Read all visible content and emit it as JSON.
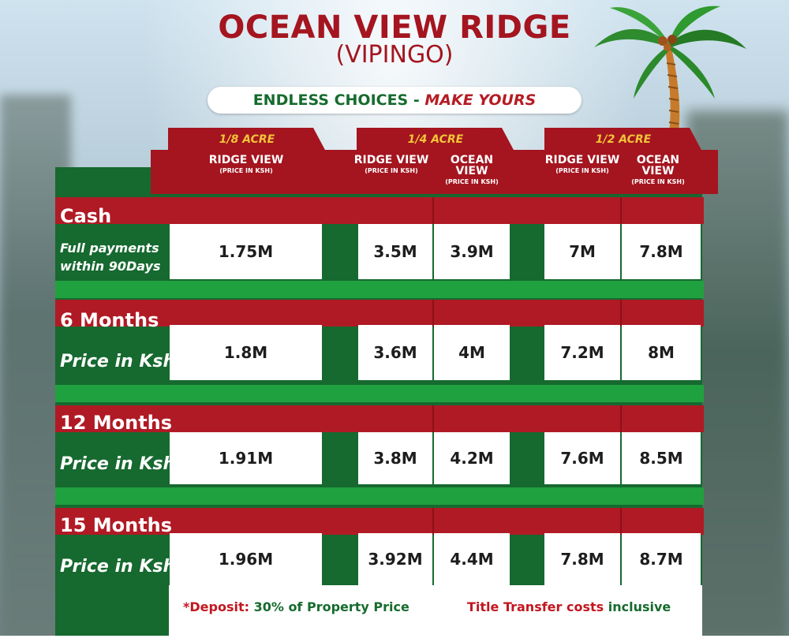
{
  "header": {
    "title": "OCEAN VIEW RIDGE",
    "subtitle": "(VIPINGO)",
    "tagline_green": "ENDLESS CHOICES -",
    "tagline_red": "MAKE YOURS"
  },
  "columns": {
    "groups": [
      "1/8 ACRE",
      "1/4 ACRE",
      "1/2 ACRE"
    ],
    "headers": [
      {
        "name": "RIDGE VIEW",
        "sub": "(PRICE IN KSH)"
      },
      {
        "name": "RIDGE VIEW",
        "sub": "(PRICE IN KSH)"
      },
      {
        "name": "OCEAN VIEW",
        "sub": "(PRICE IN KSH)"
      },
      {
        "name": "RIDGE VIEW",
        "sub": "(PRICE IN KSH)"
      },
      {
        "name": "OCEAN VIEW",
        "sub": "(PRICE IN KSH)"
      }
    ]
  },
  "rows": [
    {
      "label": "Cash",
      "sub": "Full payments within 90Days",
      "sub_line1": "Full payments",
      "sub_line2": "within 90Days",
      "values": [
        "1.75M",
        "3.5M",
        "3.9M",
        "7M",
        "7.8M"
      ]
    },
    {
      "label": "6 Months",
      "sub": "Price in Ksh",
      "values": [
        "1.8M",
        "3.6M",
        "4M",
        "7.2M",
        "8M"
      ]
    },
    {
      "label": "12 Months",
      "sub": "Price in Ksh",
      "values": [
        "1.91M",
        "3.8M",
        "4.2M",
        "7.6M",
        "8.5M"
      ]
    },
    {
      "label": "15 Months",
      "sub": "Price in Ksh",
      "values": [
        "1.96M",
        "3.92M",
        "4.4M",
        "7.8M",
        "8.7M"
      ]
    }
  ],
  "footer": {
    "deposit_prefix": "*Deposit:",
    "deposit_text": " 30% of  Property Price",
    "transfer_red": "Title Transfer costs",
    "transfer_green": " inclusive"
  },
  "colors": {
    "brand_red": "#a4151f",
    "brand_green": "#16692f",
    "stripe_green": "#20a13f",
    "tab_gold": "#f2c43a"
  }
}
